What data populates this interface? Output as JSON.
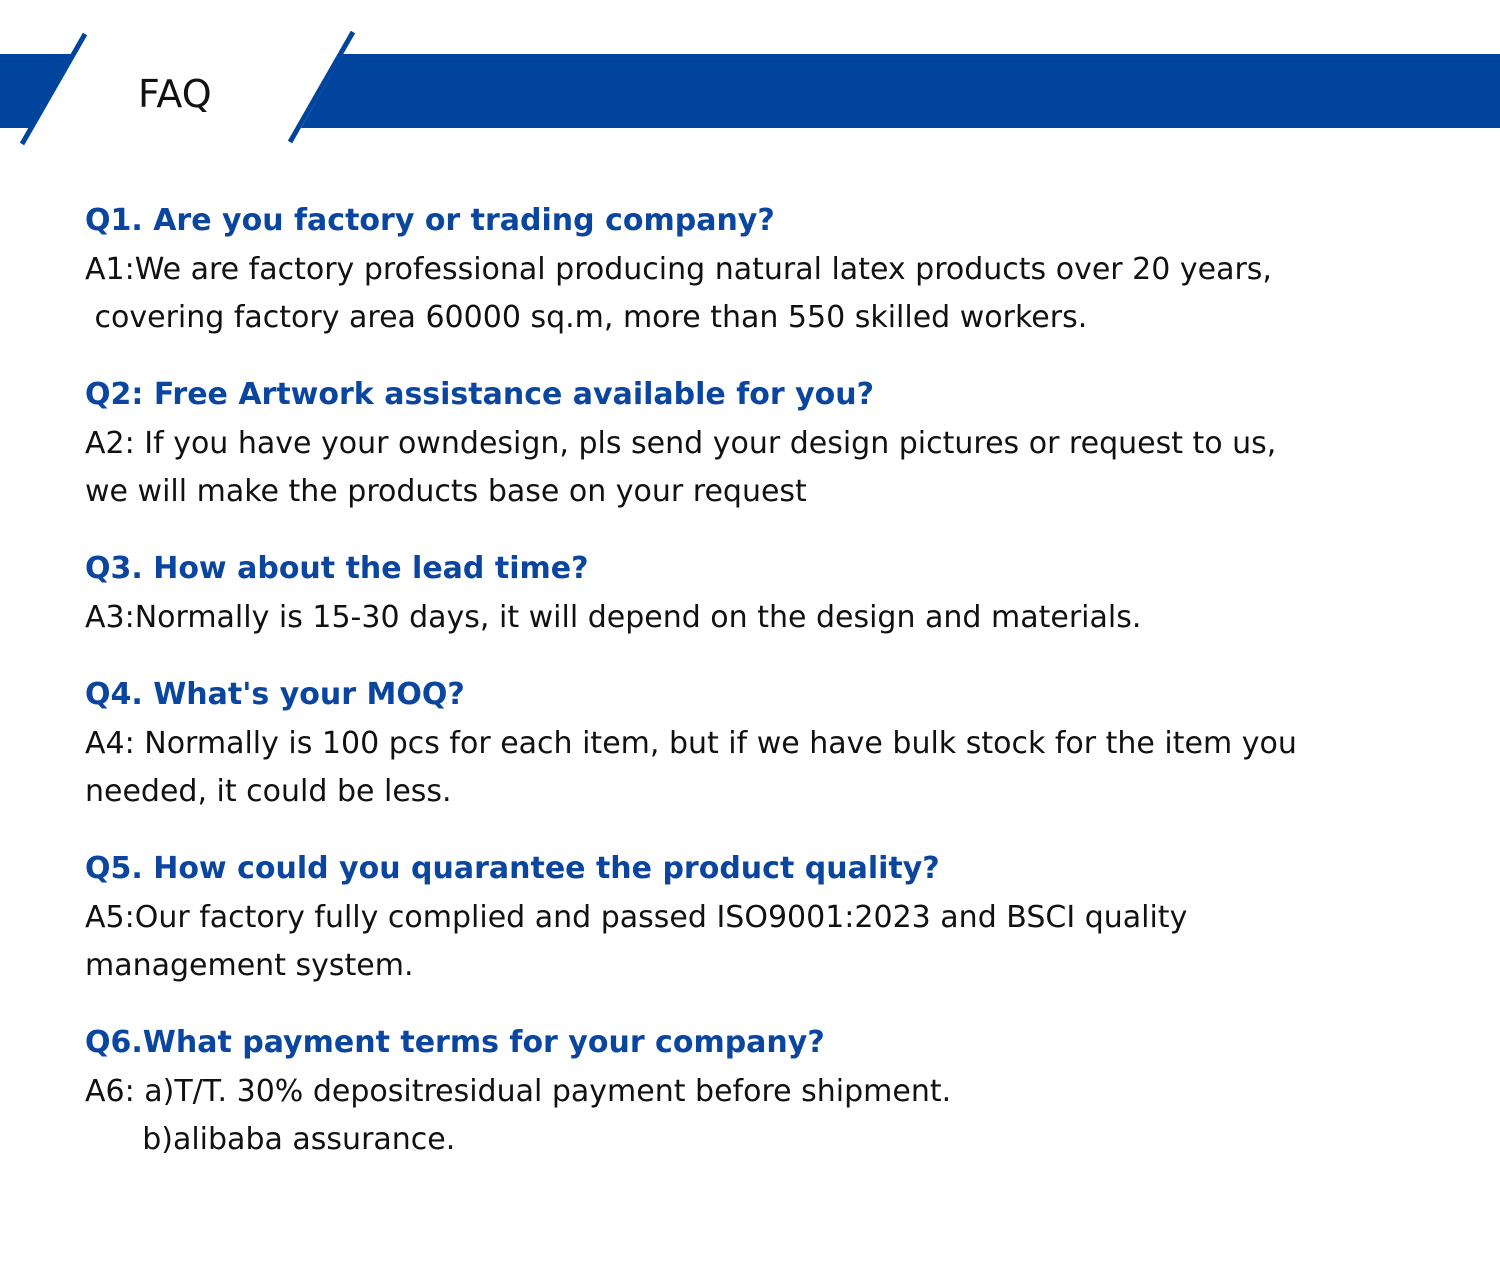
{
  "header": {
    "title": "FAQ",
    "accent_color": "#00449e"
  },
  "faq": [
    {
      "question": "Q1. Are you factory or trading company?",
      "answer_lines": [
        "A1:We are factory professional producing natural latex products over 20 years,",
        " covering factory area 60000 sq.m, more than 550 skilled workers."
      ]
    },
    {
      "question": "Q2: Free Artwork assistance available for you?",
      "answer_lines": [
        "A2: If you have your owndesign, pls send your design pictures or request to us,",
        "we will make the products base on your request"
      ]
    },
    {
      "question": "Q3. How about the lead time?",
      "answer_lines": [
        "A3:Normally is 15-30 days, it will depend on the design and materials."
      ]
    },
    {
      "question": "Q4. What's your MOQ?",
      "answer_lines": [
        "A4: Normally is 100 pcs for each item, but if we have bulk stock for the item you",
        "needed, it could be less."
      ]
    },
    {
      "question": "Q5. How could you quarantee the product quality?",
      "answer_lines": [
        "A5:Our factory fully complied and passed ISO9001:2023 and BSCI quality",
        "management system."
      ]
    },
    {
      "question": "Q6.What payment terms for your company?",
      "answer_lines": [
        "A6: a)T/T. 30% depositresidual payment before shipment.",
        "      b)alibaba assurance."
      ]
    }
  ]
}
